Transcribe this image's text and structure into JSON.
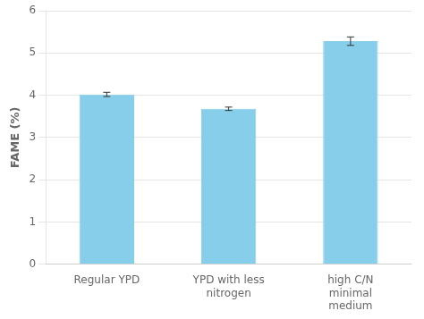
{
  "chart_data": {
    "type": "bar",
    "categories": [
      "Regular YPD",
      "YPD with less\nnitrogen",
      "high C/N\nminimal\nmedium"
    ],
    "values": [
      4.02,
      3.68,
      5.28
    ],
    "errors": [
      0.05,
      0.04,
      0.1
    ],
    "color": "#87CEEB",
    "ylabel": "FAME (%)",
    "ylim": [
      0,
      6
    ],
    "yticks": [
      0,
      1,
      2,
      3,
      4,
      5,
      6
    ],
    "grid": true
  }
}
